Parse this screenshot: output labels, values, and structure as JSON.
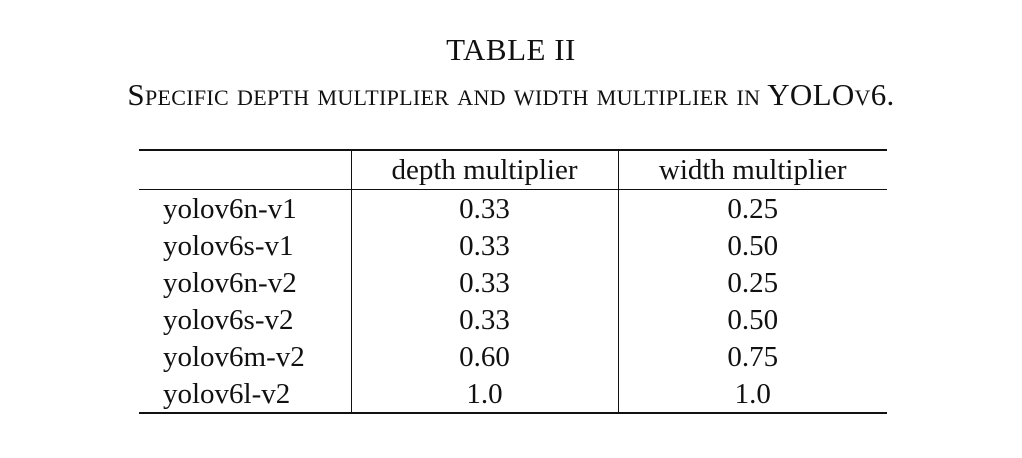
{
  "caption": {
    "number": "TABLE II",
    "title": "Specific depth multiplier and width multiplier in YOLOv6."
  },
  "table": {
    "headers": [
      "",
      "depth multiplier",
      "width multiplier"
    ],
    "rows": [
      {
        "model": "yolov6n-v1",
        "depth": "0.33",
        "width": "0.25"
      },
      {
        "model": "yolov6s-v1",
        "depth": "0.33",
        "width": "0.50"
      },
      {
        "model": "yolov6n-v2",
        "depth": "0.33",
        "width": "0.25"
      },
      {
        "model": "yolov6s-v2",
        "depth": "0.33",
        "width": "0.50"
      },
      {
        "model": "yolov6m-v2",
        "depth": "0.60",
        "width": "0.75"
      },
      {
        "model": "yolov6l-v2",
        "depth": "1.0",
        "width": "1.0"
      }
    ]
  }
}
